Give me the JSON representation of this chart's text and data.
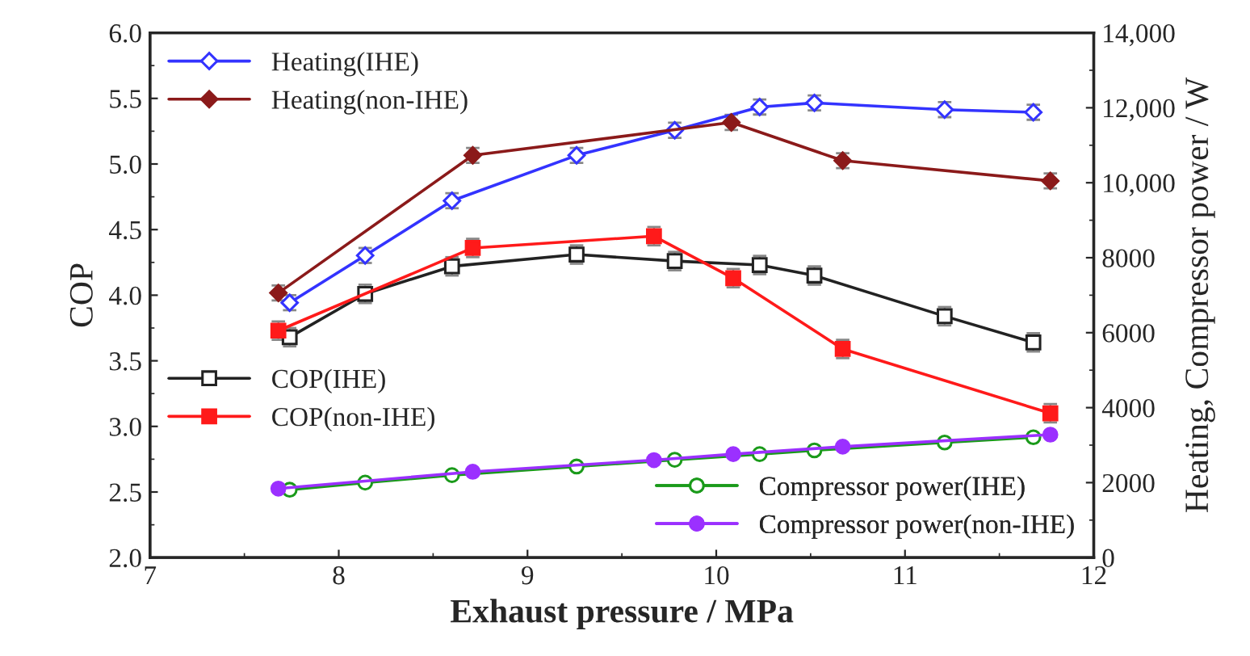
{
  "chart_data": {
    "type": "line",
    "xlabel": "Exhaust pressure / MPa",
    "ylabel": "COP",
    "y2label": "Heating, Compressor power / W",
    "xlim": [
      7,
      12
    ],
    "xticks": [
      7,
      8,
      9,
      10,
      11,
      12
    ],
    "ylim": [
      2.0,
      6.0
    ],
    "yticks": [
      {
        "value": 2.0,
        "label": "2.0"
      },
      {
        "value": 2.5,
        "label": "2.5"
      },
      {
        "value": 3.0,
        "label": "3.0"
      },
      {
        "value": 3.5,
        "label": "3.5"
      },
      {
        "value": 4.0,
        "label": "4.0"
      },
      {
        "value": 4.5,
        "label": "4.5"
      },
      {
        "value": 5.0,
        "label": "5.0"
      },
      {
        "value": 5.5,
        "label": "5.5"
      },
      {
        "value": 6.0,
        "label": "6.0"
      }
    ],
    "y2lim": [
      0,
      14000
    ],
    "y2ticks": [
      0,
      2000,
      4000,
      6000,
      8000,
      {
        "value": 10000,
        "label": "10,000"
      },
      {
        "value": 12000,
        "label": "12,000"
      },
      {
        "value": 14000,
        "label": "14,000"
      }
    ],
    "grid": false,
    "legend": [
      "top left",
      "left",
      "bottom right"
    ],
    "series": [
      {
        "name": "Heating(IHE)",
        "color": "#3333ff",
        "axis": "y2",
        "marker": "diamond",
        "x": [
          7.74,
          8.14,
          8.6,
          9.26,
          9.78,
          10.23,
          10.52,
          11.21,
          11.68
        ],
        "values": [
          6800,
          8060,
          9520,
          10730,
          11400,
          12020,
          12130,
          11950,
          11880
        ],
        "errors": [
          200,
          200,
          200,
          200,
          200,
          200,
          200,
          200,
          200
        ]
      },
      {
        "name": "Heating(non-IHE)",
        "color": "#8b1a1a",
        "axis": "y2",
        "marker": "diamond",
        "x": [
          7.68,
          8.71,
          10.08,
          10.67,
          11.77
        ],
        "values": [
          7060,
          10730,
          11610,
          10590,
          10050
        ],
        "errors": [
          200,
          200,
          200,
          200,
          200
        ]
      },
      {
        "name": "COP(IHE)",
        "color": "#222222",
        "marker": "square",
        "x": [
          7.74,
          8.14,
          8.6,
          9.26,
          9.78,
          10.23,
          10.52,
          11.21,
          11.68
        ],
        "values": [
          3.68,
          4.01,
          4.22,
          4.31,
          4.26,
          4.23,
          4.15,
          3.84,
          3.64
        ],
        "errors": [
          0.07,
          0.07,
          0.07,
          0.07,
          0.07,
          0.07,
          0.07,
          0.07,
          0.07
        ]
      },
      {
        "name": "COP(non-IHE)",
        "color": "#ff1a1a",
        "marker": "square",
        "x": [
          7.68,
          8.71,
          9.67,
          10.09,
          10.67,
          11.77
        ],
        "values": [
          3.73,
          4.36,
          4.45,
          4.13,
          3.59,
          3.1
        ],
        "errors": [
          0.07,
          0.07,
          0.07,
          0.07,
          0.07,
          0.07
        ]
      },
      {
        "name": "Compressor power(IHE)",
        "color": "#1a9a1a",
        "axis": "y2",
        "marker": "circle",
        "x": [
          7.74,
          8.14,
          8.6,
          9.26,
          9.78,
          10.23,
          10.52,
          11.21,
          11.68
        ],
        "values": [
          1810,
          2000,
          2200,
          2430,
          2610,
          2760,
          2860,
          3070,
          3210
        ]
      },
      {
        "name": "Compressor power(non-IHE)",
        "color": "#9b30ff",
        "axis": "y2",
        "marker": "circle",
        "x": [
          7.68,
          8.71,
          9.67,
          10.09,
          10.67,
          11.77
        ],
        "values": [
          1840,
          2290,
          2600,
          2760,
          2960,
          3280
        ]
      }
    ]
  }
}
